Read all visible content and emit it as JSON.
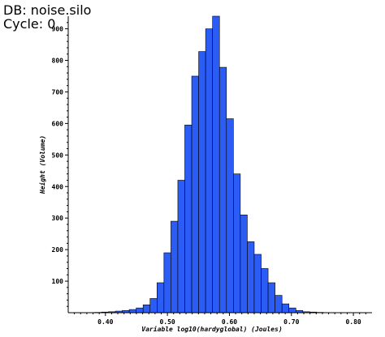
{
  "header": {
    "db_line": "DB: noise.silo",
    "cycle_line": "Cycle: 0"
  },
  "chart_data": {
    "type": "bar",
    "xlabel": "Variable log10(hardyglobal)  (Joules)",
    "ylabel": "Height (Volume)",
    "xlim": [
      0.34,
      0.83
    ],
    "ylim": [
      0,
      940
    ],
    "x_ticks": [
      0.4,
      0.5,
      0.6,
      0.7,
      0.8
    ],
    "x_tick_labels": [
      "0.40",
      "0.50",
      "0.60",
      "0.70",
      "0.80"
    ],
    "y_ticks": [
      100,
      200,
      300,
      400,
      500,
      600,
      700,
      800,
      900
    ],
    "y_tick_labels": [
      "100",
      "200",
      "300",
      "400",
      "500",
      "600",
      "700",
      "800",
      "900"
    ],
    "bar_color": "#2b5cf6",
    "bar_edge_color": "#000000",
    "bin_edges": [
      0.36,
      0.3712,
      0.3824,
      0.3936,
      0.4048,
      0.416,
      0.4272,
      0.4384,
      0.4496,
      0.4608,
      0.472,
      0.4832,
      0.4944,
      0.5056,
      0.5168,
      0.528,
      0.5392,
      0.5504,
      0.5616,
      0.5728,
      0.584,
      0.5952,
      0.6064,
      0.6176,
      0.6288,
      0.64,
      0.6512,
      0.6624,
      0.6736,
      0.6848,
      0.696,
      0.7072,
      0.7184,
      0.7296,
      0.7408,
      0.752,
      0.7632,
      0.7744,
      0.7856,
      0.7968,
      0.808,
      0.8192
    ],
    "values": [
      0,
      0,
      1,
      2,
      3,
      5,
      7,
      10,
      15,
      25,
      45,
      95,
      190,
      290,
      420,
      595,
      750,
      828,
      900,
      945,
      778,
      615,
      440,
      310,
      225,
      185,
      140,
      95,
      55,
      28,
      15,
      7,
      3,
      2,
      1,
      0,
      0,
      0,
      0,
      0,
      0
    ]
  }
}
